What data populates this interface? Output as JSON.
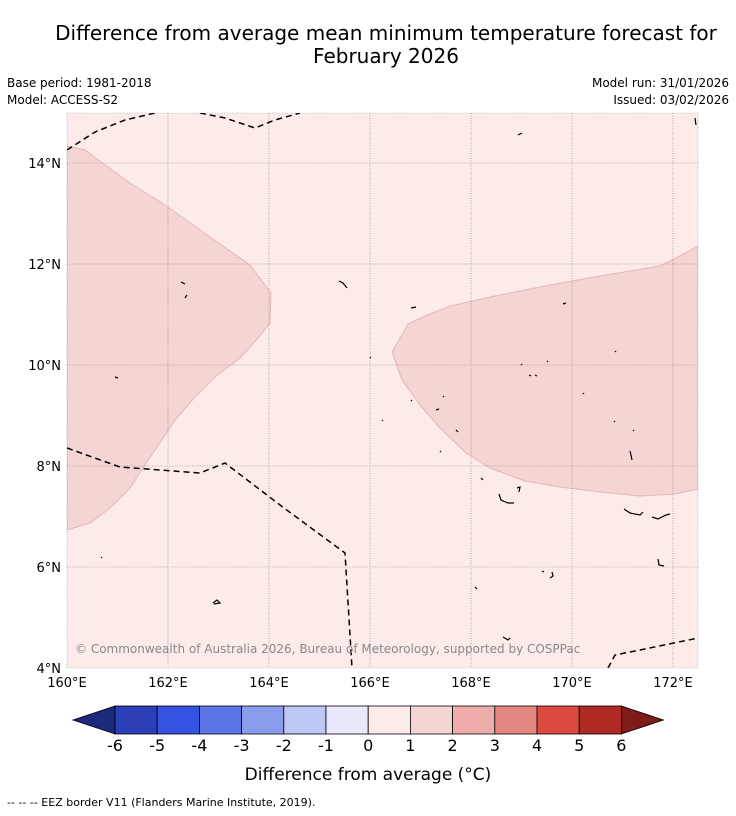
{
  "title_line1": "Difference from average mean minimum temperature forecast for",
  "title_line2": "February 2026",
  "base_period": "Base period: 1981-2018",
  "model": "Model: ACCESS-S2",
  "model_run": "Model run: 31/01/2026",
  "issued": "Issued: 03/02/2026",
  "copyright": "© Commonwealth of Australia 2026, Bureau of Meteorology, supported by COSPPac",
  "map": {
    "lat_labels": [
      "14°N",
      "12°N",
      "10°N",
      "8°N",
      "6°N",
      "4°N"
    ],
    "lon_labels": [
      "160°E",
      "162°E",
      "164°E",
      "166°E",
      "168°E",
      "170°E",
      "172°E"
    ]
  },
  "colorbar": {
    "ticks": [
      "-6",
      "-5",
      "-4",
      "-3",
      "-2",
      "-1",
      "0",
      "1",
      "2",
      "3",
      "4",
      "5",
      "6"
    ],
    "label": "Difference from average (°C)",
    "colors": [
      "#1c2a7d",
      "#2b3eb5",
      "#3552e0",
      "#5b74e6",
      "#8a9cec",
      "#bfc8f5",
      "#e6eafc",
      "#fcebe9",
      "#f5d4d4",
      "#eeadaa",
      "#e58580",
      "#db4a3e",
      "#af2a23",
      "#7d1c18"
    ]
  },
  "footnote": "--  --  -- EEZ border V11 (Flanders Marine Institute, 2019)."
}
